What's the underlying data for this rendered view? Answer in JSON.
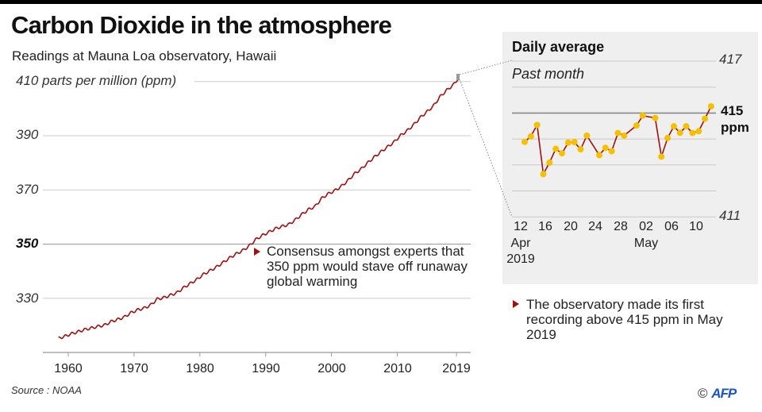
{
  "title": "Carbon Dioxide in the atmosphere",
  "subtitle": "Readings at Mauna Loa observatory, Hawaii",
  "source": "Source : NOAA",
  "credit": {
    "symbol": "©",
    "logo_text": "AFP"
  },
  "colors": {
    "line": "#a01010",
    "marker": "#f5c000",
    "panel_bg": "#efefef",
    "grid": "#cccccc",
    "threshold_line": "#888888"
  },
  "chart_data": [
    {
      "type": "line",
      "ylabel": "410 parts per million (ppm)",
      "ylim": [
        310,
        412
      ],
      "xlim": [
        1958,
        2019.4
      ],
      "y_ticks": [
        {
          "value": 410,
          "label": "410 parts per million (ppm)"
        },
        {
          "value": 390,
          "label": "390"
        },
        {
          "value": 370,
          "label": "370"
        },
        {
          "value": 350,
          "label": "350",
          "bold": true
        },
        {
          "value": 330,
          "label": "330"
        }
      ],
      "x_ticks": [
        1960,
        1970,
        1980,
        1990,
        2000,
        2010,
        2019
      ],
      "grid": true,
      "x": [
        1958.5,
        1959.5,
        1960.5,
        1961.5,
        1962.5,
        1963.5,
        1964.5,
        1965.5,
        1966.5,
        1967.5,
        1968.5,
        1969.5,
        1970.5,
        1971.5,
        1972.5,
        1973.5,
        1974.5,
        1975.5,
        1976.5,
        1977.5,
        1978.5,
        1979.5,
        1980.5,
        1981.5,
        1982.5,
        1983.5,
        1984.5,
        1985.5,
        1986.5,
        1987.5,
        1988.5,
        1989.5,
        1990.5,
        1991.5,
        1992.5,
        1993.5,
        1994.5,
        1995.5,
        1996.5,
        1997.5,
        1998.5,
        1999.5,
        2000.5,
        2001.5,
        2002.5,
        2003.5,
        2004.5,
        2005.5,
        2006.5,
        2007.5,
        2008.5,
        2009.5,
        2010.5,
        2011.5,
        2012.5,
        2013.5,
        2014.5,
        2015.5,
        2016.5,
        2017.5,
        2018.5,
        2019.35
      ],
      "values": [
        315.2,
        315.98,
        316.91,
        317.64,
        318.45,
        318.99,
        319.62,
        320.04,
        321.38,
        322.16,
        323.04,
        324.62,
        325.68,
        326.32,
        327.46,
        329.68,
        330.19,
        331.12,
        332.03,
        333.84,
        335.41,
        336.84,
        338.76,
        340.12,
        341.48,
        343.15,
        344.87,
        346.35,
        347.61,
        349.31,
        351.69,
        353.2,
        354.45,
        355.7,
        356.54,
        357.21,
        358.96,
        360.97,
        362.74,
        363.88,
        366.84,
        368.54,
        369.71,
        371.32,
        373.45,
        375.98,
        377.7,
        379.98,
        382.09,
        384.02,
        385.83,
        387.64,
        390.1,
        391.85,
        394.06,
        396.74,
        398.81,
        401.01,
        404.41,
        406.76,
        408.72,
        411.4
      ],
      "annotation": "Consensus amongst experts that 350 ppm would stave off runaway global warming"
    },
    {
      "type": "line",
      "title": "Daily average",
      "subtitle": "Past month",
      "ylim": [
        411,
        417
      ],
      "y_ticks": [
        {
          "value": 417,
          "label": "417"
        },
        {
          "value": 415,
          "label": "415 ppm",
          "bold": true
        },
        {
          "value": 411,
          "label": "411"
        }
      ],
      "grid_values": [
        417,
        416,
        415,
        414,
        413,
        412,
        411
      ],
      "x_ticks": [
        {
          "date": "2019-04-12",
          "label": "12",
          "sublabel": "Apr",
          "sublabel2": "2019"
        },
        {
          "date": "2019-04-16",
          "label": "16"
        },
        {
          "date": "2019-04-20",
          "label": "20"
        },
        {
          "date": "2019-04-24",
          "label": "24"
        },
        {
          "date": "2019-04-28",
          "label": "28"
        },
        {
          "date": "2019-05-02",
          "label": "02",
          "sublabel": "May"
        },
        {
          "date": "2019-05-06",
          "label": "06"
        },
        {
          "date": "2019-05-10",
          "label": "10"
        }
      ],
      "points": [
        [
          "2019-04-12",
          413.89
        ],
        [
          "2019-04-13",
          414.1
        ],
        [
          "2019-04-14",
          414.54
        ],
        [
          "2019-04-15",
          412.65
        ],
        [
          "2019-04-16",
          413.09
        ],
        [
          "2019-04-17",
          413.62
        ],
        [
          "2019-04-18",
          413.45
        ],
        [
          "2019-04-19",
          413.86
        ],
        [
          "2019-04-20",
          413.88
        ],
        [
          "2019-04-21",
          413.6
        ],
        [
          "2019-04-22",
          414.13
        ],
        [
          "2019-04-24",
          413.38
        ],
        [
          "2019-04-25",
          413.66
        ],
        [
          "2019-04-26",
          413.53
        ],
        [
          "2019-04-27",
          414.23
        ],
        [
          "2019-04-28",
          414.13
        ],
        [
          "2019-04-30",
          414.52
        ],
        [
          "2019-05-01",
          414.9
        ],
        [
          "2019-05-03",
          414.81
        ],
        [
          "2019-05-04",
          413.32
        ],
        [
          "2019-05-05",
          414.04
        ],
        [
          "2019-05-06",
          414.49
        ],
        [
          "2019-05-07",
          414.24
        ],
        [
          "2019-05-08",
          414.49
        ],
        [
          "2019-05-09",
          414.23
        ],
        [
          "2019-05-10",
          414.3
        ],
        [
          "2019-05-11",
          414.78
        ],
        [
          "2019-05-12",
          415.26
        ]
      ],
      "annotation": "The observatory made its first recording above 415 ppm in May 2019"
    }
  ]
}
